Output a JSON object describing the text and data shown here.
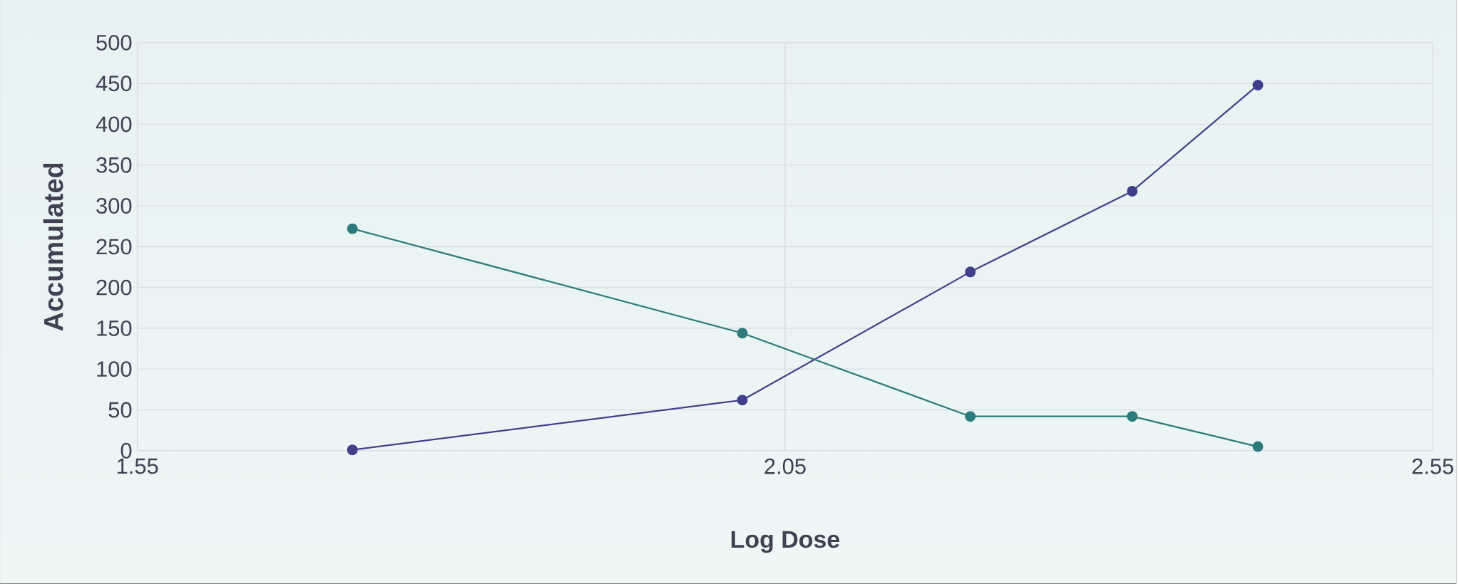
{
  "chart_data": {
    "type": "line",
    "xlabel": "Log Dose",
    "ylabel": "Accumulated",
    "x": [
      1.716,
      2.017,
      2.193,
      2.318,
      2.415
    ],
    "series": [
      {
        "color": "#40408a",
        "values": [
          1,
          62,
          219,
          318,
          448
        ]
      },
      {
        "color": "#2e7b7b",
        "values": [
          272,
          144,
          42,
          42,
          5
        ]
      }
    ],
    "xlim": [
      1.55,
      2.55
    ],
    "xticks": [
      1.55,
      2.05,
      2.55
    ],
    "ylim": [
      0,
      500
    ],
    "yticks": [
      0,
      50,
      100,
      150,
      200,
      250,
      300,
      350,
      400,
      450,
      500
    ],
    "grid": true,
    "marker": "circle",
    "line_style": "solid"
  }
}
